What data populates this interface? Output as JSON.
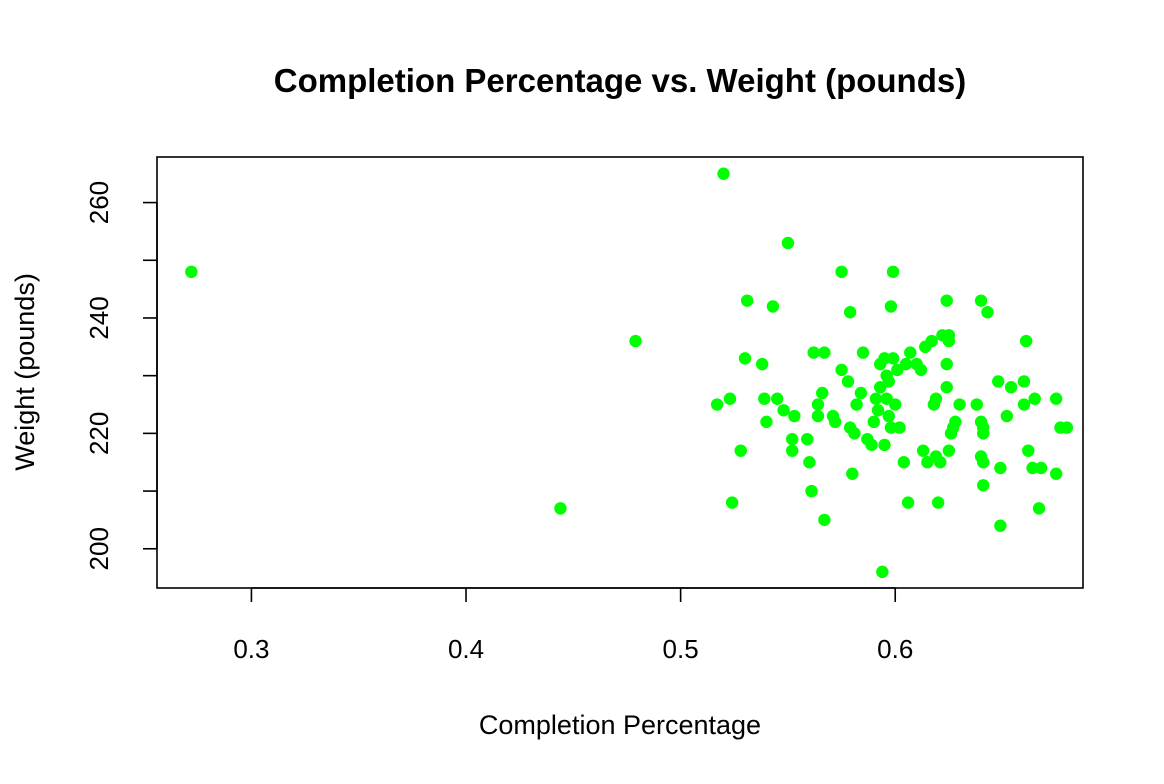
{
  "chart_data": {
    "type": "scatter",
    "title": "Completion Percentage vs. Weight (pounds)",
    "xlabel": "Completion Percentage",
    "ylabel": "Weight (pounds)",
    "xlim": [
      0.256,
      0.6875
    ],
    "ylim": [
      193.2,
      267.9
    ],
    "xticks": [
      {
        "value": 0.3,
        "label": "0.3"
      },
      {
        "value": 0.4,
        "label": "0.4"
      },
      {
        "value": 0.5,
        "label": "0.5"
      },
      {
        "value": 0.6,
        "label": "0.6"
      }
    ],
    "yticks": [
      {
        "value": 200,
        "label": "200"
      },
      {
        "value": 210,
        "label": ""
      },
      {
        "value": 220,
        "label": "220"
      },
      {
        "value": 230,
        "label": ""
      },
      {
        "value": 240,
        "label": "240"
      },
      {
        "value": 250,
        "label": ""
      },
      {
        "value": 260,
        "label": "260"
      }
    ],
    "grid": false,
    "point_color": "#00ff00",
    "series": [
      {
        "points": [
          [
            0.272,
            248
          ],
          [
            0.444,
            207
          ],
          [
            0.479,
            236
          ],
          [
            0.517,
            225
          ],
          [
            0.52,
            265
          ],
          [
            0.523,
            226
          ],
          [
            0.524,
            208
          ],
          [
            0.528,
            217
          ],
          [
            0.53,
            233
          ],
          [
            0.531,
            243
          ],
          [
            0.538,
            232
          ],
          [
            0.539,
            226
          ],
          [
            0.54,
            222
          ],
          [
            0.543,
            242
          ],
          [
            0.545,
            226
          ],
          [
            0.548,
            224
          ],
          [
            0.55,
            253
          ],
          [
            0.552,
            219
          ],
          [
            0.552,
            217
          ],
          [
            0.553,
            223
          ],
          [
            0.559,
            219
          ],
          [
            0.56,
            215
          ],
          [
            0.561,
            210
          ],
          [
            0.562,
            234
          ],
          [
            0.564,
            225
          ],
          [
            0.564,
            223
          ],
          [
            0.566,
            227
          ],
          [
            0.567,
            234
          ],
          [
            0.567,
            205
          ],
          [
            0.571,
            223
          ],
          [
            0.572,
            222
          ],
          [
            0.575,
            231
          ],
          [
            0.575,
            248
          ],
          [
            0.578,
            229
          ],
          [
            0.579,
            241
          ],
          [
            0.579,
            221
          ],
          [
            0.58,
            213
          ],
          [
            0.581,
            220
          ],
          [
            0.582,
            225
          ],
          [
            0.584,
            227
          ],
          [
            0.585,
            234
          ],
          [
            0.587,
            219
          ],
          [
            0.589,
            218
          ],
          [
            0.59,
            222
          ],
          [
            0.591,
            226
          ],
          [
            0.592,
            224
          ],
          [
            0.593,
            228
          ],
          [
            0.593,
            232
          ],
          [
            0.594,
            196
          ],
          [
            0.595,
            218
          ],
          [
            0.595,
            233
          ],
          [
            0.596,
            226
          ],
          [
            0.596,
            230
          ],
          [
            0.597,
            229
          ],
          [
            0.597,
            223
          ],
          [
            0.598,
            242
          ],
          [
            0.598,
            221
          ],
          [
            0.599,
            233
          ],
          [
            0.599,
            248
          ],
          [
            0.6,
            225
          ],
          [
            0.601,
            231
          ],
          [
            0.602,
            221
          ],
          [
            0.604,
            215
          ],
          [
            0.605,
            232
          ],
          [
            0.606,
            208
          ],
          [
            0.607,
            234
          ],
          [
            0.61,
            232
          ],
          [
            0.612,
            231
          ],
          [
            0.613,
            217
          ],
          [
            0.614,
            235
          ],
          [
            0.615,
            215
          ],
          [
            0.617,
            236
          ],
          [
            0.618,
            225
          ],
          [
            0.619,
            226
          ],
          [
            0.619,
            216
          ],
          [
            0.62,
            208
          ],
          [
            0.621,
            215
          ],
          [
            0.622,
            237
          ],
          [
            0.624,
            232
          ],
          [
            0.624,
            228
          ],
          [
            0.624,
            243
          ],
          [
            0.625,
            237
          ],
          [
            0.625,
            236
          ],
          [
            0.625,
            217
          ],
          [
            0.626,
            220
          ],
          [
            0.627,
            221
          ],
          [
            0.628,
            222
          ],
          [
            0.63,
            225
          ],
          [
            0.638,
            225
          ],
          [
            0.64,
            216
          ],
          [
            0.64,
            243
          ],
          [
            0.64,
            222
          ],
          [
            0.641,
            221
          ],
          [
            0.641,
            220
          ],
          [
            0.641,
            215
          ],
          [
            0.641,
            211
          ],
          [
            0.643,
            241
          ],
          [
            0.648,
            229
          ],
          [
            0.649,
            214
          ],
          [
            0.649,
            204
          ],
          [
            0.652,
            223
          ],
          [
            0.654,
            228
          ],
          [
            0.66,
            225
          ],
          [
            0.66,
            229
          ],
          [
            0.661,
            236
          ],
          [
            0.662,
            217
          ],
          [
            0.664,
            214
          ],
          [
            0.665,
            226
          ],
          [
            0.667,
            207
          ],
          [
            0.668,
            214
          ],
          [
            0.675,
            226
          ],
          [
            0.675,
            213
          ],
          [
            0.677,
            221
          ],
          [
            0.68,
            221
          ]
        ]
      }
    ]
  }
}
